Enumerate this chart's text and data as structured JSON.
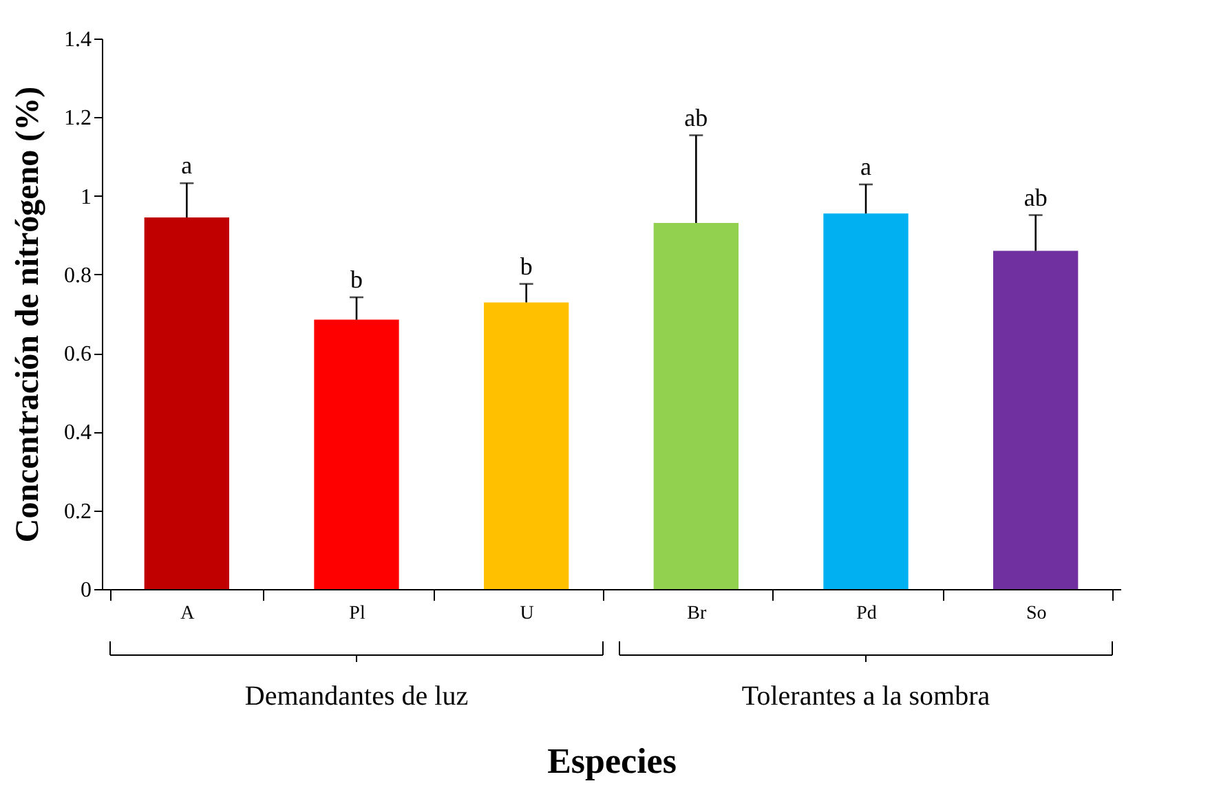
{
  "chart_data": {
    "type": "bar",
    "xlabel": "Especies",
    "ylabel": "Concentración de nitrógeno (%)",
    "categories": [
      "A",
      "Pl",
      "U",
      "Br",
      "Pd",
      "So"
    ],
    "values": [
      0.945,
      0.685,
      0.729,
      0.931,
      0.955,
      0.86
    ],
    "colors": [
      "#c00000",
      "#ff0000",
      "#ffc000",
      "#92d050",
      "#00b0f0",
      "#7030a0"
    ],
    "errors": [
      [
        0.945,
        1.032
      ],
      [
        0.685,
        0.742
      ],
      [
        0.729,
        0.776
      ],
      [
        0.931,
        1.154
      ],
      [
        0.955,
        1.029
      ],
      [
        0.86,
        0.951
      ]
    ],
    "ylim": [
      0,
      1.4
    ],
    "yticks": [
      0,
      0.2,
      0.4,
      0.6,
      0.8,
      1,
      1.2,
      1.4
    ],
    "grid": false,
    "annotations": [
      {
        "text": "a",
        "x": "A",
        "y": 1.032
      },
      {
        "text": "b",
        "x": "Pl",
        "y": 0.742
      },
      {
        "text": "b",
        "x": "U",
        "y": 0.776
      },
      {
        "text": "ab",
        "x": "Br",
        "y": 1.154
      },
      {
        "text": "a",
        "x": "Pd",
        "y": 1.029
      },
      {
        "text": "ab",
        "x": "So",
        "y": 0.951
      },
      "Demandantes de luz",
      "Tolerantes a la sombra"
    ]
  }
}
